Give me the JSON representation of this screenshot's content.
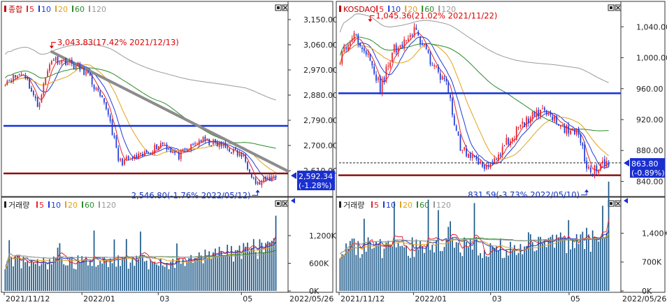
{
  "colors": {
    "ma5": "#e8202a",
    "ma10": "#1f3bd6",
    "ma20": "#e2a21b",
    "ma60": "#2a8a2a",
    "ma120": "#9a9a9a",
    "up": "#e8202a",
    "down": "#1f3bd6",
    "hline_blue": "#1030e0",
    "hline_red": "#8b1010",
    "price_tag": "#1a2fd0",
    "volume_bar": "#1f5a8a"
  },
  "chart_data": [
    {
      "id": "kospi",
      "type": "candlestick",
      "legend": {
        "name": "종합",
        "ma": [
          "5",
          "10",
          "20",
          "60",
          "120"
        ]
      },
      "volume_legend": {
        "name": "거래량",
        "ma": [
          "5",
          "10",
          "20",
          "60",
          "120"
        ]
      },
      "y_ticks": [
        "3,150.00",
        "3,060.00",
        "2,970.00",
        "2,880.00",
        "2,790.00",
        "2,700.00",
        "2,610.00"
      ],
      "y_tick_values": [
        3150,
        3060,
        2970,
        2880,
        2790,
        2700,
        2610
      ],
      "ylim": [
        2530,
        3185
      ],
      "x_labels": [
        "2021/11/12",
        "2022/01",
        "03",
        "05"
      ],
      "x_end_label": "2022/05/26",
      "current_price": "2,592.34",
      "current_change": "(-1.28%)",
      "current_value": 2592.34,
      "high_annotation": "3,043.83(17.42% 2021/12/13)",
      "high_value": 3043.83,
      "low_annotation": "2,546.80(-1.76% 2022/05/12)",
      "low_value": 2546.8,
      "hline_blue": 2770,
      "hline_red": 2600,
      "trendline": [
        [
          3035,
          1
        ],
        [
          2608,
          0
        ]
      ],
      "volume_ticks": [
        "1,200K",
        "600K",
        "0K"
      ],
      "volume_tick_values": [
        1200,
        600,
        0
      ],
      "volume_max": 1700
    },
    {
      "id": "kosdaq",
      "type": "candlestick",
      "legend": {
        "name": "KOSDAQ",
        "ma": [
          "5",
          "10",
          "20",
          "60",
          "120"
        ]
      },
      "volume_legend": {
        "name": "거래량",
        "ma": [
          "5",
          "10",
          "20",
          "60",
          "120"
        ]
      },
      "y_ticks": [
        "1,040.00",
        "1,000.00",
        "960.00",
        "920.00",
        "880.00",
        "840.00"
      ],
      "y_tick_values": [
        1040,
        1000,
        960,
        920,
        880,
        840
      ],
      "ylim": [
        825,
        1062
      ],
      "x_labels": [
        "2021/11/12",
        "2022/01",
        "03",
        "05"
      ],
      "x_end_label": "2022/05/26",
      "current_price": "863.80",
      "current_change": "(-0.89%)",
      "current_value": 863.8,
      "high_annotation": "1,045.36(21.02% 2021/11/22)",
      "high_value": 1045.36,
      "low_annotation": "831.59(-3.73% 2022/05/10)",
      "low_value": 831.59,
      "hline_blue": 954,
      "hline_red": 848,
      "dashed_line": 864,
      "volume_ticks": [
        "1,400K",
        "700K",
        "0K"
      ],
      "volume_tick_values": [
        1400,
        700,
        0
      ],
      "volume_max": 1900
    }
  ]
}
